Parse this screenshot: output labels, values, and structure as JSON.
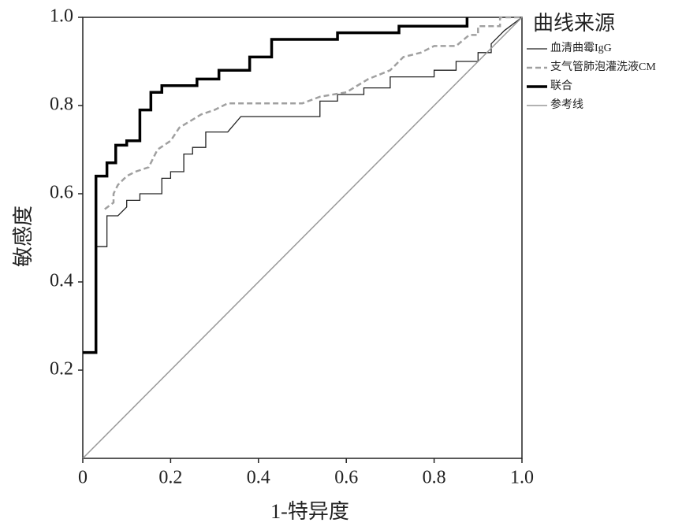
{
  "chart_data": {
    "type": "line",
    "xlabel": "1-特异度",
    "ylabel": "敏感度",
    "legend_title": "曲线来源",
    "xlim": [
      0,
      1
    ],
    "ylim": [
      0,
      1
    ],
    "xticks": [
      0,
      0.2,
      0.4,
      0.6,
      0.8,
      {
        "value": 1,
        "label": "1.0"
      }
    ],
    "yticks": [
      0.2,
      0.4,
      0.6,
      0.8,
      {
        "value": 1,
        "label": "1.0"
      }
    ],
    "legend": "right",
    "series": [
      {
        "name": "血清曲霉IgG",
        "color": "#222222",
        "width": 1.3,
        "dash": false,
        "x": [
          0.03,
          0.055,
          0.055,
          0.08,
          0.1,
          0.1,
          0.13,
          0.13,
          0.18,
          0.18,
          0.2,
          0.2,
          0.23,
          0.23,
          0.25,
          0.25,
          0.28,
          0.28,
          0.33,
          0.36,
          0.54,
          0.54,
          0.58,
          0.58,
          0.64,
          0.64,
          0.7,
          0.7,
          0.8,
          0.8,
          0.85,
          0.85,
          0.9,
          0.9,
          0.93,
          0.93,
          0.96,
          1
        ],
        "values": [
          0.48,
          0.48,
          0.55,
          0.55,
          0.57,
          0.585,
          0.585,
          0.6,
          0.6,
          0.635,
          0.635,
          0.65,
          0.65,
          0.69,
          0.69,
          0.705,
          0.705,
          0.74,
          0.74,
          0.775,
          0.775,
          0.81,
          0.81,
          0.825,
          0.825,
          0.84,
          0.84,
          0.865,
          0.865,
          0.88,
          0.88,
          0.9,
          0.9,
          0.92,
          0.92,
          0.94,
          0.97,
          1
        ]
      },
      {
        "name": "支气管肺泡灌洗液CM",
        "color": "#a0a0a0",
        "width": 2.5,
        "dash": true,
        "x": [
          0.05,
          0.07,
          0.07,
          0.08,
          0.1,
          0.12,
          0.15,
          0.17,
          0.2,
          0.22,
          0.27,
          0.3,
          0.33,
          0.5,
          0.54,
          0.6,
          0.65,
          0.7,
          0.73,
          0.77,
          0.8,
          0.85,
          0.88,
          0.9,
          0.9,
          0.95,
          0.95,
          1
        ],
        "values": [
          0.565,
          0.58,
          0.6,
          0.62,
          0.64,
          0.65,
          0.66,
          0.7,
          0.72,
          0.75,
          0.78,
          0.79,
          0.805,
          0.805,
          0.82,
          0.83,
          0.86,
          0.88,
          0.91,
          0.92,
          0.935,
          0.935,
          0.96,
          0.96,
          0.98,
          0.98,
          1,
          1
        ]
      },
      {
        "name": "联合",
        "color": "#000000",
        "width": 3.5,
        "dash": false,
        "x": [
          0,
          0.03,
          0.03,
          0.055,
          0.055,
          0.075,
          0.075,
          0.1,
          0.1,
          0.13,
          0.13,
          0.155,
          0.155,
          0.18,
          0.18,
          0.26,
          0.26,
          0.31,
          0.31,
          0.38,
          0.38,
          0.43,
          0.43,
          0.58,
          0.58,
          0.72,
          0.72,
          0.875,
          0.875
        ],
        "values": [
          0.24,
          0.24,
          0.64,
          0.64,
          0.67,
          0.67,
          0.71,
          0.71,
          0.72,
          0.72,
          0.79,
          0.79,
          0.83,
          0.83,
          0.845,
          0.845,
          0.86,
          0.86,
          0.88,
          0.88,
          0.91,
          0.91,
          0.95,
          0.95,
          0.965,
          0.965,
          0.98,
          0.98,
          1
        ]
      },
      {
        "name": "参考线",
        "color": "#999999",
        "width": 1.5,
        "dash": false,
        "x": [
          0,
          1
        ],
        "values": [
          0,
          1
        ]
      }
    ]
  }
}
